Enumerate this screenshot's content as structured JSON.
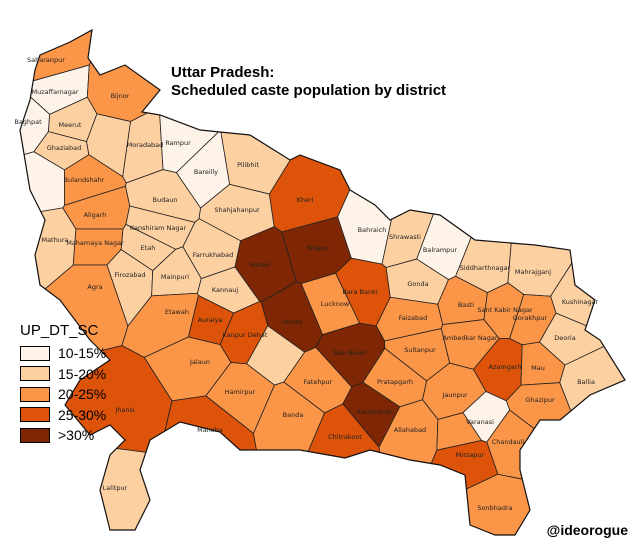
{
  "title_line1": "Uttar Pradesh:",
  "title_line2": "Scheduled caste population by district",
  "legend": {
    "title": "UP_DT_SC",
    "classes": [
      {
        "label": "10-15%",
        "color": "#fef3e8"
      },
      {
        "label": "15-20%",
        "color": "#fdd0a2"
      },
      {
        "label": "20-25%",
        "color": "#fb9547"
      },
      {
        "label": "25-30%",
        "color": "#dc5309"
      },
      {
        "label": ">30%",
        "color": "#7f2704"
      }
    ]
  },
  "credit": "@ideorogue",
  "districts": [
    {
      "name": "Saharanpur",
      "cls": 2
    },
    {
      "name": "Muzaffarnagar",
      "cls": 0
    },
    {
      "name": "Bijnor",
      "cls": 2
    },
    {
      "name": "Baghpat",
      "cls": 0
    },
    {
      "name": "Meerut",
      "cls": 1
    },
    {
      "name": "Ghaziabad",
      "cls": 1
    },
    {
      "name": "",
      "cls": 0
    },
    {
      "name": "Moradabad",
      "cls": 1
    },
    {
      "name": "",
      "cls": 1
    },
    {
      "name": "Rampur",
      "cls": 0
    },
    {
      "name": "Bareilly",
      "cls": 0
    },
    {
      "name": "Pilibhit",
      "cls": 1
    },
    {
      "name": "Bulandshahr",
      "cls": 2
    },
    {
      "name": "Budaun",
      "cls": 1
    },
    {
      "name": "Shahjahanpur",
      "cls": 1
    },
    {
      "name": "Kheri",
      "cls": 3
    },
    {
      "name": "Aligarh",
      "cls": 2
    },
    {
      "name": "Kanshiram Nagar",
      "cls": 1
    },
    {
      "name": "Mathura",
      "cls": 1
    },
    {
      "name": "Mahamaya Nagar",
      "cls": 2
    },
    {
      "name": "Etah",
      "cls": 1
    },
    {
      "name": "Farrukhabad",
      "cls": 1
    },
    {
      "name": "Hardoi",
      "cls": 4
    },
    {
      "name": "Sitapur",
      "cls": 4
    },
    {
      "name": "Bahraich",
      "cls": 0
    },
    {
      "name": "Shrawasti",
      "cls": 1
    },
    {
      "name": "Balrampur",
      "cls": 0
    },
    {
      "name": "Siddharthnagar",
      "cls": 1
    },
    {
      "name": "Mahrajganj",
      "cls": 1
    },
    {
      "name": "Kushinagar",
      "cls": 1
    },
    {
      "name": "Agra",
      "cls": 2
    },
    {
      "name": "Firozabad",
      "cls": 1
    },
    {
      "name": "Mainpuri",
      "cls": 1
    },
    {
      "name": "Kannauj",
      "cls": 1
    },
    {
      "name": "Etawah",
      "cls": 2
    },
    {
      "name": "Auraiya",
      "cls": 3
    },
    {
      "name": "Lucknow",
      "cls": 2
    },
    {
      "name": "Bara Banki",
      "cls": 3
    },
    {
      "name": "Gonda",
      "cls": 1
    },
    {
      "name": "Basti",
      "cls": 2
    },
    {
      "name": "Sant Kabir Nagar",
      "cls": 2
    },
    {
      "name": "Gorakhpur",
      "cls": 2
    },
    {
      "name": "Deoria",
      "cls": 1
    },
    {
      "name": "Faizabad",
      "cls": 2
    },
    {
      "name": "Ambedkar Nagar",
      "cls": 2
    },
    {
      "name": "Unnao",
      "cls": 4
    },
    {
      "name": "Kanpur Dehat",
      "cls": 3
    },
    {
      "name": "",
      "cls": 1
    },
    {
      "name": "Rae Bareli",
      "cls": 4
    },
    {
      "name": "Sultanpur",
      "cls": 2
    },
    {
      "name": "Azamgarh",
      "cls": 3
    },
    {
      "name": "Mau",
      "cls": 2
    },
    {
      "name": "Ballia",
      "cls": 1
    },
    {
      "name": "Jalaun",
      "cls": 2
    },
    {
      "name": "Jhansi",
      "cls": 3
    },
    {
      "name": "Hamirpur",
      "cls": 2
    },
    {
      "name": "Fatehpur",
      "cls": 2
    },
    {
      "name": "Pratapgarh",
      "cls": 2
    },
    {
      "name": "Jaunpur",
      "cls": 2
    },
    {
      "name": "Ghazipur",
      "cls": 2
    },
    {
      "name": "Varanasi",
      "cls": 0
    },
    {
      "name": "Chandauli",
      "cls": 2
    },
    {
      "name": "Mahoba",
      "cls": 3
    },
    {
      "name": "Banda",
      "cls": 2
    },
    {
      "name": "Kaushambi",
      "cls": 4
    },
    {
      "name": "Allahabad",
      "cls": 2
    },
    {
      "name": "Chitrakoot",
      "cls": 3
    },
    {
      "name": "",
      "cls": 2
    },
    {
      "name": "Mirzapur",
      "cls": 3
    },
    {
      "name": "Sonbhadra",
      "cls": 2
    },
    {
      "name": "Lalitpur",
      "cls": 1
    }
  ]
}
